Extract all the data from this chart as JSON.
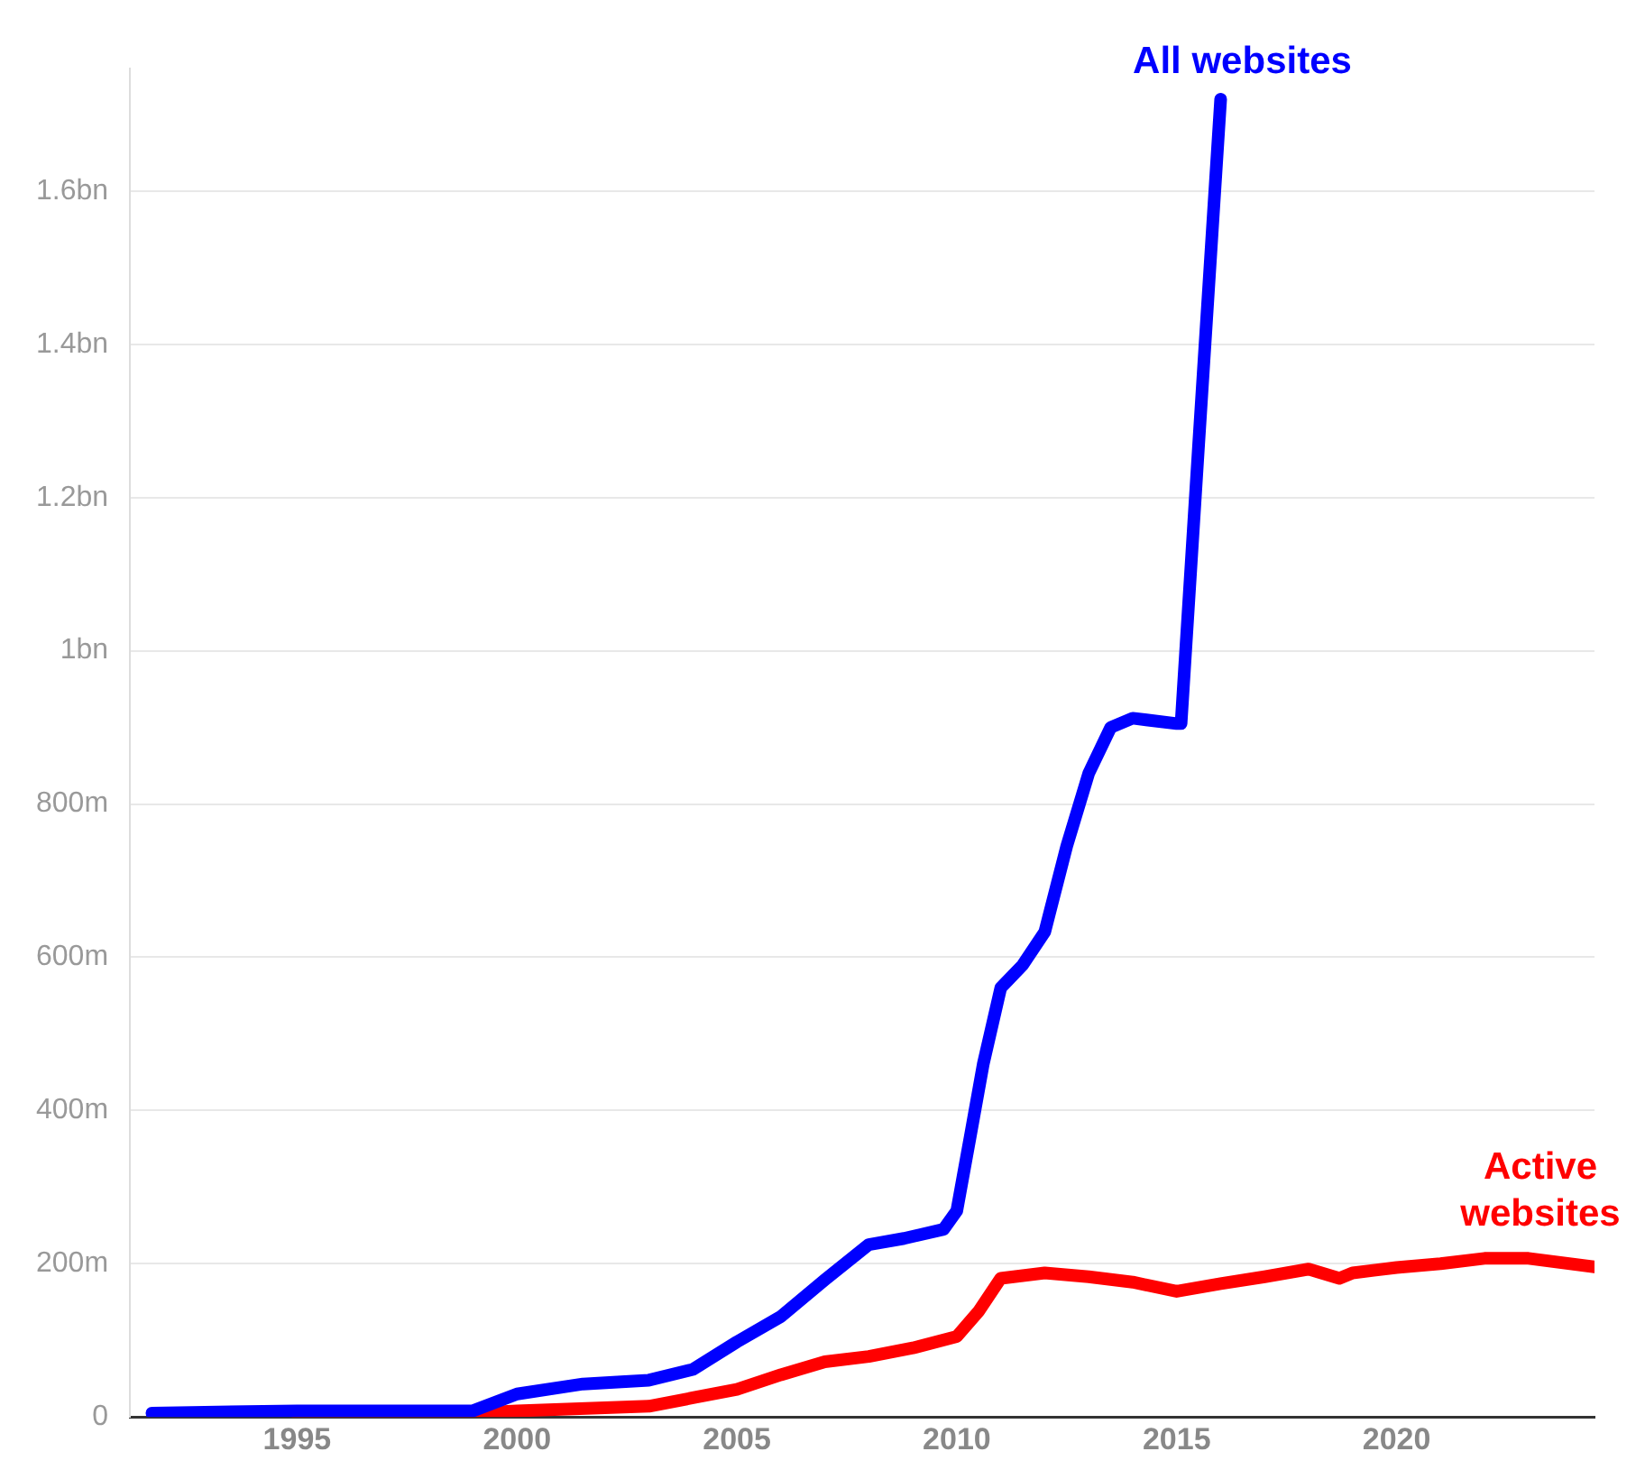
{
  "chart_data": {
    "type": "line",
    "xlim": [
      1991.2,
      2024.5
    ],
    "xticks": [
      1995,
      2000,
      2005,
      2010,
      2015,
      2020
    ],
    "ylim": [
      0,
      1760000000
    ],
    "yticks": [
      0,
      {
        "value": 200000000,
        "label": "200m"
      },
      {
        "value": 400000000,
        "label": "400m"
      },
      {
        "value": 600000000,
        "label": "600m"
      },
      {
        "value": 800000000,
        "label": "800m"
      },
      {
        "value": 1000000000,
        "label": "1bn"
      },
      {
        "value": 1200000000,
        "label": "1.2bn"
      },
      {
        "value": 1400000000,
        "label": "1.4bn"
      },
      {
        "value": 1600000000,
        "label": "1.6bn"
      }
    ],
    "grid": "y",
    "legend": false,
    "marker": "none",
    "line_style": "solid",
    "series": [
      {
        "name": "All websites",
        "color": "#0000ff",
        "x": [
          1991.7,
          1995,
          1999,
          2000,
          2001.5,
          2003,
          2004,
          2005,
          2006,
          2007,
          2008,
          2008.8,
          2009.7,
          2010,
          2010.3,
          2010.6,
          2011,
          2011.5,
          2012,
          2012.5,
          2013,
          2013.5,
          2014,
          2015,
          2015.1,
          2015.5,
          2016
        ],
        "values": [
          5000000,
          8000000,
          8000000,
          30000000,
          43000000,
          48000000,
          62000000,
          98000000,
          131000000,
          179000000,
          225000000,
          233000000,
          245000000,
          269000000,
          364000000,
          460000000,
          560000000,
          590000000,
          633000000,
          745000000,
          840000000,
          900000000,
          912000000,
          905000000,
          905000000,
          1270000000,
          1720000000
        ]
      },
      {
        "name": "Active websites",
        "color": "#ff0000",
        "x": [
          1995,
          1999,
          2000,
          2003,
          2004,
          2005,
          2006,
          2007,
          2008,
          2009,
          2010,
          2010.5,
          2011,
          2012,
          2013,
          2014,
          2015,
          2016,
          2017,
          2018,
          2018.7,
          2019,
          2020,
          2021,
          2022,
          2023,
          2024.5
        ],
        "values": [
          4000000,
          5000000,
          8000000,
          14000000,
          25000000,
          36000000,
          55000000,
          72000000,
          79000000,
          90000000,
          105000000,
          138000000,
          181000000,
          188000000,
          183000000,
          176000000,
          164000000,
          174000000,
          183000000,
          193000000,
          181000000,
          188000000,
          195000000,
          200000000,
          207000000,
          207000000,
          196000000
        ]
      }
    ]
  }
}
